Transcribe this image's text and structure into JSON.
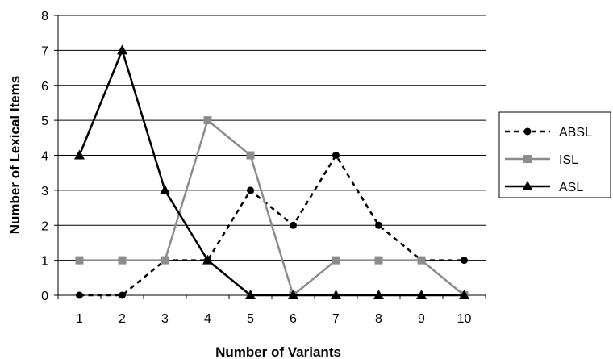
{
  "chart_data": {
    "type": "line",
    "title": "",
    "xlabel": "Number of Variants",
    "ylabel": "Number of Lexical Items",
    "x": [
      1,
      2,
      3,
      4,
      5,
      6,
      7,
      8,
      9,
      10
    ],
    "ylim": [
      0,
      8
    ],
    "yticks": [
      0,
      1,
      2,
      3,
      4,
      5,
      6,
      7,
      8
    ],
    "grid": "horizontal",
    "legend_position": "right",
    "series": [
      {
        "name": "ABSL",
        "values": [
          0,
          0,
          1,
          1,
          3,
          2,
          4,
          2,
          1,
          1
        ],
        "color": "#000000",
        "dash": "dashed",
        "marker": "circle"
      },
      {
        "name": "ISL",
        "values": [
          1,
          1,
          1,
          5,
          4,
          0,
          1,
          1,
          1,
          0
        ],
        "color": "#8c8c8c",
        "dash": "solid",
        "marker": "square"
      },
      {
        "name": "ASL",
        "values": [
          4,
          7,
          3,
          1,
          0,
          0,
          0,
          0,
          0,
          0
        ],
        "color": "#000000",
        "dash": "solid",
        "marker": "triangle"
      }
    ]
  }
}
